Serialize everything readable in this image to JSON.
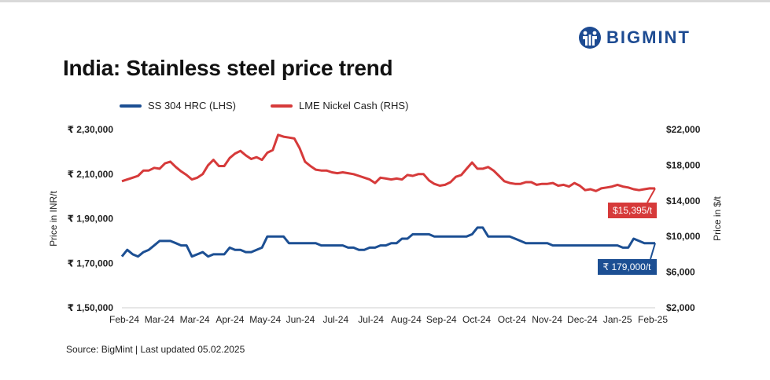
{
  "header": {
    "brand": "BIGMINT",
    "title": "India: Stainless steel price trend"
  },
  "footer": {
    "source": "Source: BigMint | Last updated 05.02.2025"
  },
  "colors": {
    "ss304": "#1c4f93",
    "lme": "#d63a3a",
    "brand": "#1d4b92"
  },
  "chart_data": {
    "type": "line",
    "title": "India: Stainless steel price trend",
    "ylabel": "Price in INR/t",
    "y2label": "Price in $/t",
    "ylim": [
      150000,
      230000
    ],
    "y2lim": [
      2000,
      22000
    ],
    "yticks": [
      "₹ 2,30,000",
      "₹ 2,10,000",
      "₹ 1,90,000",
      "₹ 1,70,000",
      "₹ 1,50,000"
    ],
    "y2ticks": [
      "$22,000",
      "$18,000",
      "$14,000",
      "$10,000",
      "$6,000",
      "$2,000"
    ],
    "x_labels": [
      "Feb-24",
      "Mar-24",
      "Mar-24",
      "Apr-24",
      "May-24",
      "Jun-24",
      "Jul-24",
      "Jul-24",
      "Aug-24",
      "Sep-24",
      "Oct-24",
      "Oct-24",
      "Nov-24",
      "Dec-24",
      "Jan-25",
      "Feb-25"
    ],
    "grid": false,
    "legend_position": "top-left",
    "series": [
      {
        "name": "SS 304 HRC (LHS)",
        "axis": "left",
        "color": "#1c4f93",
        "end_label": "₹ 179,000/t",
        "values": [
          173000,
          176000,
          174000,
          173000,
          175000,
          176000,
          178000,
          180000,
          180000,
          180000,
          179000,
          178000,
          178000,
          173000,
          174000,
          175000,
          173000,
          174000,
          174000,
          174000,
          177000,
          176000,
          176000,
          175000,
          175000,
          176000,
          177000,
          182000,
          182000,
          182000,
          182000,
          179000,
          179000,
          179000,
          179000,
          179000,
          179000,
          178000,
          178000,
          178000,
          178000,
          178000,
          177000,
          177000,
          176000,
          176000,
          177000,
          177000,
          178000,
          178000,
          179000,
          179000,
          181000,
          181000,
          183000,
          183000,
          183000,
          183000,
          182000,
          182000,
          182000,
          182000,
          182000,
          182000,
          182000,
          183000,
          186000,
          186000,
          182000,
          182000,
          182000,
          182000,
          182000,
          181000,
          180000,
          179000,
          179000,
          179000,
          179000,
          179000,
          178000,
          178000,
          178000,
          178000,
          178000,
          178000,
          178000,
          178000,
          178000,
          178000,
          178000,
          178000,
          178000,
          177000,
          177000,
          181000,
          180000,
          179000,
          179000,
          179000
        ]
      },
      {
        "name": "LME Nickel Cash (RHS)",
        "axis": "right",
        "color": "#d63a3a",
        "end_label": "$15,395/t",
        "values": [
          16200,
          16400,
          16600,
          16800,
          17400,
          17400,
          17700,
          17600,
          18200,
          18400,
          17800,
          17300,
          16900,
          16400,
          16600,
          17000,
          18000,
          18600,
          17900,
          17900,
          18800,
          19300,
          19600,
          19100,
          18700,
          18900,
          18600,
          19400,
          19700,
          21400,
          21200,
          21100,
          21000,
          19900,
          18400,
          17900,
          17500,
          17400,
          17400,
          17200,
          17100,
          17200,
          17100,
          17000,
          16800,
          16600,
          16400,
          16000,
          16600,
          16500,
          16400,
          16500,
          16400,
          16900,
          16800,
          17000,
          17000,
          16300,
          15900,
          15700,
          15800,
          16100,
          16700,
          16900,
          17600,
          18300,
          17600,
          17600,
          17800,
          17400,
          16800,
          16200,
          16000,
          15900,
          15900,
          16100,
          16100,
          15800,
          15900,
          15900,
          16000,
          15700,
          15800,
          15600,
          16000,
          15700,
          15200,
          15300,
          15100,
          15400,
          15500,
          15600,
          15800,
          15600,
          15500,
          15300,
          15200,
          15300,
          15400,
          15395
        ]
      }
    ]
  }
}
